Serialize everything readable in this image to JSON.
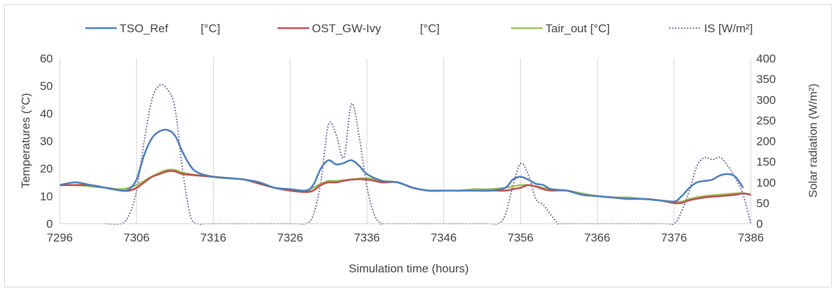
{
  "chart_data": {
    "type": "line",
    "title": "",
    "xlabel": "Simulation time (hours)",
    "ylabel": "Temperatures (°C)",
    "y2label": "Solar radiation (W/m²)",
    "xlim": [
      7296,
      7386
    ],
    "ylim": [
      0,
      60
    ],
    "y2lim": [
      0,
      400
    ],
    "xticks": [
      7296,
      7306,
      7316,
      7326,
      7336,
      7346,
      7356,
      7366,
      7376,
      7386
    ],
    "yticks": [
      0,
      10,
      20,
      30,
      40,
      50,
      60
    ],
    "y2ticks": [
      0,
      50,
      100,
      150,
      200,
      250,
      300,
      350,
      400
    ],
    "grid": "vertical",
    "legend": "top",
    "series": [
      {
        "name": "TSO_Ref          [°C]",
        "axis": "left",
        "color": "#4a7ebb",
        "dash": "solid",
        "points": [
          [
            7296,
            14
          ],
          [
            7298,
            15
          ],
          [
            7300,
            14
          ],
          [
            7302,
            13
          ],
          [
            7304,
            12
          ],
          [
            7305,
            12.5
          ],
          [
            7306,
            16
          ],
          [
            7307,
            25
          ],
          [
            7308,
            31
          ],
          [
            7309,
            33.5
          ],
          [
            7310,
            34
          ],
          [
            7311,
            32
          ],
          [
            7312,
            26
          ],
          [
            7313,
            21
          ],
          [
            7314,
            18.5
          ],
          [
            7316,
            17
          ],
          [
            7318,
            16.5
          ],
          [
            7320,
            16
          ],
          [
            7322,
            15
          ],
          [
            7324,
            13
          ],
          [
            7326,
            12.5
          ],
          [
            7328,
            12
          ],
          [
            7329,
            14
          ],
          [
            7330,
            20
          ],
          [
            7331,
            23
          ],
          [
            7332,
            21.5
          ],
          [
            7333,
            22
          ],
          [
            7334,
            23
          ],
          [
            7335,
            21
          ],
          [
            7336,
            18
          ],
          [
            7338,
            15.5
          ],
          [
            7340,
            15
          ],
          [
            7342,
            13
          ],
          [
            7344,
            12
          ],
          [
            7346,
            12
          ],
          [
            7348,
            12
          ],
          [
            7350,
            12
          ],
          [
            7352,
            12
          ],
          [
            7354,
            13
          ],
          [
            7355,
            16
          ],
          [
            7356,
            17
          ],
          [
            7357,
            16
          ],
          [
            7358,
            14.5
          ],
          [
            7359,
            14
          ],
          [
            7360,
            12.5
          ],
          [
            7362,
            12
          ],
          [
            7364,
            10.5
          ],
          [
            7366,
            10
          ],
          [
            7368,
            9.5
          ],
          [
            7370,
            9
          ],
          [
            7372,
            9
          ],
          [
            7374,
            8.5
          ],
          [
            7376,
            8
          ],
          [
            7377,
            10
          ],
          [
            7378,
            13
          ],
          [
            7379,
            15
          ],
          [
            7380,
            15.5
          ],
          [
            7381,
            16
          ],
          [
            7382,
            17.5
          ],
          [
            7383,
            18
          ],
          [
            7384,
            17
          ],
          [
            7385,
            13
          ]
        ]
      },
      {
        "name": "OST_GW-Ivy            [°C]",
        "axis": "left",
        "color": "#be4b48",
        "dash": "solid",
        "points": [
          [
            7296,
            14
          ],
          [
            7298,
            14
          ],
          [
            7300,
            14
          ],
          [
            7302,
            13
          ],
          [
            7304,
            12
          ],
          [
            7305,
            12
          ],
          [
            7306,
            13
          ],
          [
            7307,
            15
          ],
          [
            7308,
            17
          ],
          [
            7309,
            18
          ],
          [
            7310,
            19
          ],
          [
            7311,
            19
          ],
          [
            7312,
            18
          ],
          [
            7314,
            17.5
          ],
          [
            7316,
            17
          ],
          [
            7318,
            16.5
          ],
          [
            7320,
            16
          ],
          [
            7322,
            14.5
          ],
          [
            7324,
            13
          ],
          [
            7326,
            12
          ],
          [
            7328,
            11.5
          ],
          [
            7329,
            12
          ],
          [
            7330,
            14
          ],
          [
            7331,
            15
          ],
          [
            7332,
            15
          ],
          [
            7334,
            16
          ],
          [
            7336,
            16
          ],
          [
            7338,
            15
          ],
          [
            7340,
            15
          ],
          [
            7342,
            13
          ],
          [
            7344,
            12
          ],
          [
            7346,
            12
          ],
          [
            7348,
            12
          ],
          [
            7350,
            12
          ],
          [
            7352,
            12
          ],
          [
            7354,
            12
          ],
          [
            7355,
            12.5
          ],
          [
            7356,
            13
          ],
          [
            7357,
            14
          ],
          [
            7358,
            13.5
          ],
          [
            7359,
            12.5
          ],
          [
            7360,
            12
          ],
          [
            7362,
            12
          ],
          [
            7364,
            10.5
          ],
          [
            7366,
            10
          ],
          [
            7368,
            9.5
          ],
          [
            7370,
            9
          ],
          [
            7372,
            9
          ],
          [
            7374,
            8.5
          ],
          [
            7376,
            7.5
          ],
          [
            7377,
            7.5
          ],
          [
            7378,
            8.5
          ],
          [
            7380,
            9.5
          ],
          [
            7382,
            10
          ],
          [
            7384,
            10.5
          ],
          [
            7385,
            11
          ],
          [
            7386,
            10.5
          ]
        ]
      },
      {
        "name": "Tair_out [°C]",
        "axis": "left",
        "color": "#98c05a",
        "dash": "solid",
        "points": [
          [
            7296,
            14
          ],
          [
            7298,
            14
          ],
          [
            7300,
            13.5
          ],
          [
            7302,
            13
          ],
          [
            7304,
            12.5
          ],
          [
            7305,
            13
          ],
          [
            7306,
            14
          ],
          [
            7307,
            15.5
          ],
          [
            7308,
            17
          ],
          [
            7309,
            18.5
          ],
          [
            7310,
            19.5
          ],
          [
            7311,
            19.5
          ],
          [
            7312,
            18.5
          ],
          [
            7314,
            17.5
          ],
          [
            7316,
            17
          ],
          [
            7318,
            16.5
          ],
          [
            7320,
            16
          ],
          [
            7322,
            14.5
          ],
          [
            7324,
            13
          ],
          [
            7326,
            12.5
          ],
          [
            7328,
            12
          ],
          [
            7329,
            13
          ],
          [
            7330,
            14.5
          ],
          [
            7331,
            15.5
          ],
          [
            7332,
            15.5
          ],
          [
            7334,
            16
          ],
          [
            7336,
            16.5
          ],
          [
            7338,
            15.5
          ],
          [
            7340,
            15
          ],
          [
            7342,
            13
          ],
          [
            7344,
            12
          ],
          [
            7346,
            12
          ],
          [
            7348,
            12
          ],
          [
            7350,
            12.5
          ],
          [
            7352,
            12.5
          ],
          [
            7354,
            13
          ],
          [
            7355,
            13.5
          ],
          [
            7356,
            14
          ],
          [
            7357,
            14
          ],
          [
            7358,
            13.5
          ],
          [
            7359,
            13
          ],
          [
            7360,
            12.5
          ],
          [
            7362,
            12
          ],
          [
            7364,
            11
          ],
          [
            7366,
            10
          ],
          [
            7368,
            9.5
          ],
          [
            7370,
            9.5
          ],
          [
            7372,
            9
          ],
          [
            7374,
            8.5
          ],
          [
            7376,
            8
          ],
          [
            7377,
            8
          ],
          [
            7378,
            9
          ],
          [
            7380,
            10
          ],
          [
            7382,
            10.5
          ],
          [
            7384,
            11
          ],
          [
            7385,
            11
          ],
          [
            7386,
            10.5
          ]
        ]
      },
      {
        "name": "IS [W/m²]",
        "axis": "right",
        "color": "#8064a2",
        "dash": "dotted",
        "points": [
          [
            7302,
            0
          ],
          [
            7304,
            0
          ],
          [
            7305,
            20
          ],
          [
            7306,
            80
          ],
          [
            7307,
            200
          ],
          [
            7308,
            300
          ],
          [
            7309,
            335
          ],
          [
            7310,
            325
          ],
          [
            7311,
            280
          ],
          [
            7312,
            130
          ],
          [
            7313,
            20
          ],
          [
            7314,
            0
          ],
          [
            7316,
            0
          ],
          [
            7326,
            0
          ],
          [
            7328,
            0
          ],
          [
            7329,
            20
          ],
          [
            7330,
            100
          ],
          [
            7331,
            240
          ],
          [
            7332,
            215
          ],
          [
            7333,
            160
          ],
          [
            7334,
            290
          ],
          [
            7335,
            210
          ],
          [
            7336,
            90
          ],
          [
            7337,
            20
          ],
          [
            7338,
            0
          ],
          [
            7339,
            0
          ],
          [
            7351,
            0
          ],
          [
            7353,
            0
          ],
          [
            7354,
            20
          ],
          [
            7355,
            90
          ],
          [
            7356,
            145
          ],
          [
            7357,
            120
          ],
          [
            7358,
            60
          ],
          [
            7359,
            45
          ],
          [
            7360,
            20
          ],
          [
            7361,
            0
          ],
          [
            7362,
            0
          ],
          [
            7374,
            0
          ],
          [
            7376,
            0
          ],
          [
            7377,
            30
          ],
          [
            7378,
            80
          ],
          [
            7379,
            140
          ],
          [
            7380,
            160
          ],
          [
            7381,
            155
          ],
          [
            7382,
            160
          ],
          [
            7383,
            140
          ],
          [
            7384,
            110
          ],
          [
            7385,
            70
          ],
          [
            7386,
            0
          ]
        ]
      }
    ]
  }
}
